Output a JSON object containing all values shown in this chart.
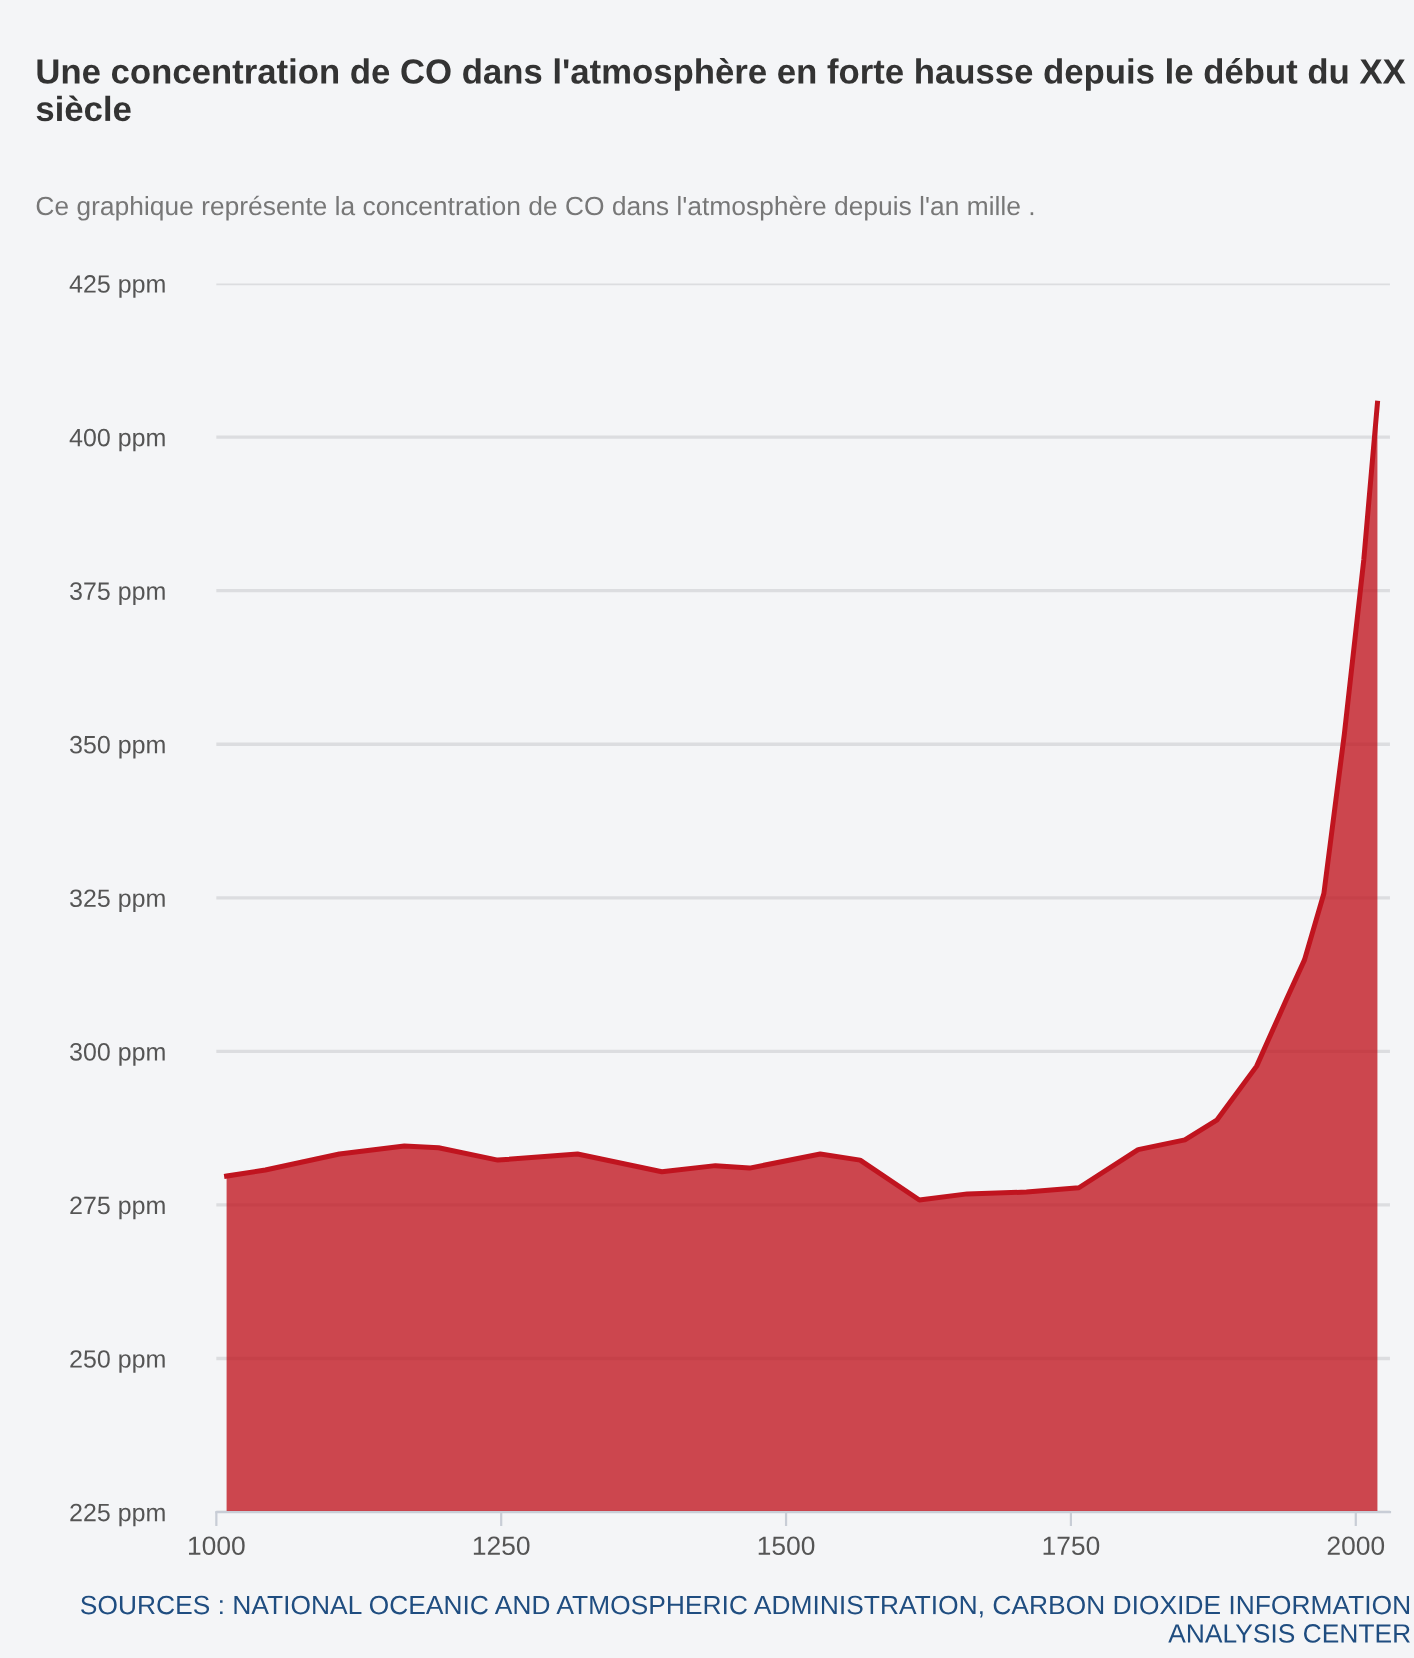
{
  "chart_data": {
    "type": "area",
    "title": "Une concentration de CO dans l'atmosphère en forte hausse depuis le début du XX siècle",
    "subtitle": "Ce graphique représente la concentration de CO dans l'atmosphère depuis l'an mille .",
    "annotations": [
      "SOURCES : NATIONAL OCEANIC AND ATMOSPHERIC ADMINISTRATION, CARBON DIOXIDE INFORMATION ANALYSIS CENTER"
    ],
    "x": [
      1009,
      1043,
      1108,
      1165,
      1195,
      1247,
      1317,
      1391,
      1438,
      1468,
      1530,
      1565,
      1617,
      1659,
      1711,
      1757,
      1809,
      1850,
      1878,
      1913,
      1939,
      1955,
      1972,
      1990,
      2007,
      2019
    ],
    "series": [
      {
        "color": "#c0141f",
        "values": [
          279.7,
          280.7,
          283.3,
          284.6,
          284.3,
          282.3,
          283.3,
          280.4,
          281.4,
          281,
          283.3,
          282.3,
          275.8,
          276.8,
          277.1,
          277.8,
          284,
          285.6,
          288.8,
          297.6,
          308.4,
          314.9,
          325.7,
          351.7,
          380,
          405.5
        ]
      }
    ],
    "xlim": [
      1000,
      2030
    ],
    "xticks": [
      1000,
      1250,
      1500,
      1750,
      2000
    ],
    "ylim": [
      225,
      425
    ],
    "yticks": [
      {
        "value": 225,
        "label": "225 ppm"
      },
      {
        "value": 250,
        "label": "250 ppm"
      },
      {
        "value": 275,
        "label": "275 ppm"
      },
      {
        "value": 300,
        "label": "300 ppm"
      },
      {
        "value": 325,
        "label": "325 ppm"
      },
      {
        "value": 350,
        "label": "350 ppm"
      },
      {
        "value": 375,
        "label": "375 ppm"
      },
      {
        "value": 400,
        "label": "400 ppm"
      },
      {
        "value": 425,
        "label": "425 ppm"
      }
    ],
    "grid": "y",
    "legend": false
  }
}
